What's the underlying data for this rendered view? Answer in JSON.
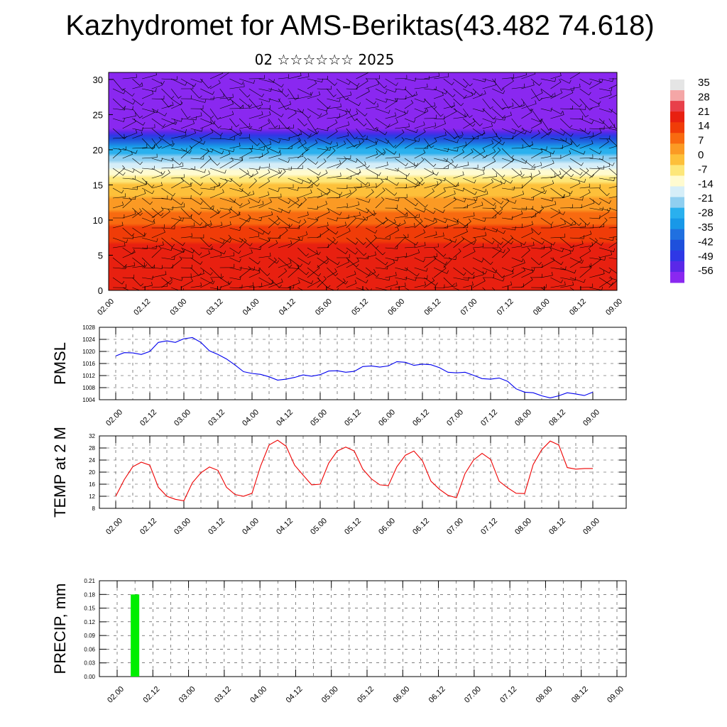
{
  "header": {
    "title": "Kazhydromet for AMS-Beriktas(43.482 74.618)",
    "subtitle": "02 ☆☆☆☆☆☆ 2025"
  },
  "time_ticks": [
    "02.00",
    "02.12",
    "03.00",
    "03.12",
    "04.00",
    "04.12",
    "05.00",
    "05.12",
    "06.00",
    "06.12",
    "07.00",
    "07.12",
    "08.00",
    "08.12",
    "09.00"
  ],
  "colorbar": {
    "labels": [
      "35",
      "28",
      "21",
      "14",
      "7",
      "0",
      "-7",
      "-14",
      "-21",
      "-28",
      "-35",
      "-42",
      "-49",
      "-56"
    ],
    "colors": [
      "#e5e5e5",
      "#f4a6a6",
      "#e8404a",
      "#e82010",
      "#f03c08",
      "#f86a10",
      "#fb9a24",
      "#fdc03a",
      "#fde77a",
      "#fffbd0",
      "#d6eef8",
      "#90cff0",
      "#2ab0ee",
      "#1898e8",
      "#2070e0",
      "#1e50dc",
      "#2e38e6",
      "#5a28e8",
      "#8a28f0"
    ]
  },
  "chart_data": [
    {
      "type": "heatmap",
      "title": "",
      "xlabel": "",
      "ylabel": "",
      "x_ticks": [
        "02.00",
        "02.12",
        "03.00",
        "03.12",
        "04.00",
        "04.12",
        "05.00",
        "05.12",
        "06.00",
        "06.12",
        "07.00",
        "07.12",
        "08.00",
        "08.12",
        "09.00"
      ],
      "y_ticks": [
        "0",
        "5",
        "10",
        "15",
        "20",
        "25",
        "30"
      ],
      "ylim": [
        0,
        31
      ],
      "color_range": [
        -56,
        35
      ],
      "description_values": {
        "level_temperature_profile": [
          [
            0,
            20
          ],
          [
            5,
            19
          ],
          [
            10,
            10
          ],
          [
            15,
            -3
          ],
          [
            20,
            -26
          ],
          [
            22,
            -45
          ],
          [
            24,
            -58
          ],
          [
            26,
            -58
          ],
          [
            28,
            -60
          ],
          [
            31,
            -68
          ]
        ]
      },
      "overlay": "wind barbs"
    },
    {
      "type": "line",
      "ylabel": "PMSL",
      "ylim": [
        1004,
        1028
      ],
      "y_ticks": [
        "1004",
        "1008",
        "1012",
        "1016",
        "1020",
        "1024",
        "1028"
      ],
      "x_ticks": [
        "02.00",
        "02.12",
        "03.00",
        "03.12",
        "04.00",
        "04.12",
        "05.00",
        "05.12",
        "06.00",
        "06.12",
        "07.00",
        "07.12",
        "08.00",
        "08.12",
        "09.00"
      ],
      "color": "#0000ee",
      "x_hours": [
        0,
        3,
        6,
        9,
        12,
        15,
        18,
        21,
        24,
        27,
        30,
        33,
        36,
        39,
        42,
        45,
        48,
        51,
        54,
        57,
        60,
        63,
        66,
        69,
        72,
        75,
        78,
        81,
        84,
        87,
        90,
        93,
        96,
        99,
        102,
        105,
        108,
        111,
        114,
        117,
        120,
        123,
        126,
        129,
        132,
        135,
        138,
        141,
        144,
        147,
        150,
        153,
        156,
        159,
        162,
        165,
        168
      ],
      "values": [
        1018.5,
        1019.6,
        1019.5,
        1019.0,
        1020.0,
        1023.0,
        1023.5,
        1023.0,
        1024.2,
        1024.6,
        1023.0,
        1020.2,
        1019.0,
        1017.5,
        1015.5,
        1013.3,
        1012.7,
        1012.4,
        1011.6,
        1010.5,
        1010.8,
        1011.4,
        1012.2,
        1011.8,
        1012.3,
        1013.5,
        1013.6,
        1013.1,
        1013.4,
        1015.0,
        1015.2,
        1014.8,
        1015.2,
        1016.6,
        1016.4,
        1015.4,
        1015.8,
        1015.6,
        1014.6,
        1013.1,
        1012.9,
        1013.1,
        1012.1,
        1011.0,
        1010.8,
        1011.2,
        1010.1,
        1007.6,
        1006.5,
        1006.3,
        1005.3,
        1004.6,
        1005.3,
        1006.3,
        1005.9,
        1005.4,
        1006.5
      ]
    },
    {
      "type": "line",
      "ylabel": "TEMP at 2 M",
      "ylim": [
        8,
        32
      ],
      "y_ticks": [
        "8",
        "12",
        "16",
        "20",
        "24",
        "28",
        "32"
      ],
      "x_ticks": [
        "02.00",
        "02.12",
        "03.00",
        "03.12",
        "04.00",
        "04.12",
        "05.00",
        "05.12",
        "06.00",
        "06.12",
        "07.00",
        "07.12",
        "08.00",
        "08.12",
        "09.00"
      ],
      "color": "#ee0000",
      "x_hours": [
        0,
        3,
        6,
        9,
        12,
        15,
        18,
        21,
        24,
        27,
        30,
        33,
        36,
        39,
        42,
        45,
        48,
        51,
        54,
        57,
        60,
        63,
        66,
        69,
        72,
        75,
        78,
        81,
        84,
        87,
        90,
        93,
        96,
        99,
        102,
        105,
        108,
        111,
        114,
        117,
        120,
        123,
        126,
        129,
        132,
        135,
        138,
        141,
        144,
        147,
        150,
        153,
        156,
        159,
        162,
        165,
        168
      ],
      "values": [
        12.0,
        17.5,
        21.8,
        23.3,
        22.3,
        15.0,
        12.0,
        11.0,
        10.5,
        16.5,
        19.8,
        21.7,
        20.6,
        15.0,
        12.6,
        12.0,
        13.0,
        22.0,
        29.0,
        30.6,
        28.6,
        22.3,
        19.0,
        15.8,
        16.0,
        23.0,
        27.0,
        28.3,
        27.0,
        21.0,
        17.8,
        15.8,
        15.5,
        21.8,
        25.6,
        27.0,
        23.8,
        17.0,
        14.3,
        12.3,
        11.5,
        19.5,
        24.0,
        26.2,
        24.2,
        17.0,
        14.8,
        13.0,
        12.9,
        22.5,
        27.4,
        30.3,
        29.0,
        21.5,
        21.0,
        21.2,
        21.2
      ]
    },
    {
      "type": "bar",
      "ylabel": "PRECIP, mm",
      "ylim": [
        0,
        0.21
      ],
      "y_ticks": [
        "0.00",
        "0.03",
        "0.06",
        "0.09",
        "0.12",
        "0.15",
        "0.18",
        "0.21"
      ],
      "x_ticks": [
        "02.00",
        "02.12",
        "03.00",
        "03.12",
        "04.00",
        "04.12",
        "05.00",
        "05.12",
        "06.00",
        "06.12",
        "07.00",
        "07.12",
        "08.00",
        "08.12",
        "09.00"
      ],
      "color": "#00ee00",
      "x_hours": [
        6
      ],
      "values": [
        0.18
      ]
    }
  ]
}
